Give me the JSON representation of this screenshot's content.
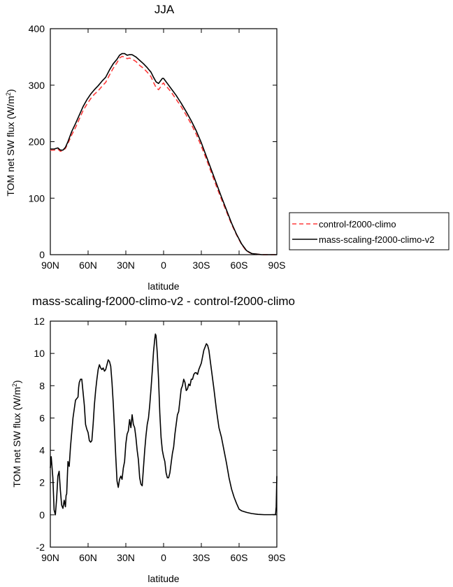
{
  "chart_data": [
    {
      "type": "line",
      "title": "JJA",
      "xlabel": "latitude",
      "ylabel_main": "TOM net SW flux (W/m",
      "ylabel_sup": "2",
      "ylabel_close": ")",
      "xlim": [
        90,
        -90
      ],
      "ylim": [
        0,
        400
      ],
      "x_tick_values": [
        90,
        60,
        30,
        0,
        -30,
        -60,
        -90
      ],
      "x_tick_labels": [
        "90N",
        "60N",
        "30N",
        "0",
        "30S",
        "60S",
        "90S"
      ],
      "y_tick_values": [
        0,
        100,
        200,
        300,
        400
      ],
      "y_tick_labels": [
        "0",
        "100",
        "200",
        "300",
        "400"
      ],
      "legend": "right",
      "series": [
        {
          "name": "control-f2000-climo",
          "color": "#ff3b3b",
          "dash": "dashed",
          "x": [
            90,
            87,
            84,
            82,
            80,
            78,
            76,
            73,
            70,
            67,
            64,
            61,
            58,
            55,
            52,
            49,
            46,
            43,
            40,
            37,
            35,
            33,
            31,
            29,
            27,
            25,
            22,
            19,
            16,
            13,
            10,
            8,
            6,
            4,
            2,
            1,
            0,
            -1,
            -3,
            -6,
            -10,
            -14,
            -18,
            -22,
            -26,
            -30,
            -34,
            -38,
            -42,
            -46,
            -50,
            -54,
            -58,
            -62,
            -66,
            -70,
            -74,
            -78,
            -82,
            -86,
            -90
          ],
          "y": [
            185,
            185,
            187,
            183,
            184,
            188,
            197,
            212,
            225,
            240,
            255,
            266,
            276,
            284,
            290,
            298,
            305,
            318,
            330,
            340,
            348,
            351,
            350,
            347,
            348,
            346,
            342,
            335,
            330,
            323,
            315,
            305,
            296,
            292,
            298,
            302,
            304,
            300,
            296,
            288,
            275,
            262,
            247,
            231,
            213,
            192,
            169,
            145,
            121,
            98,
            76,
            54,
            35,
            18,
            6,
            2,
            1,
            0,
            0,
            0,
            0
          ]
        },
        {
          "name": "mass-scaling-f2000-climo-v2",
          "color": "#000000",
          "dash": "solid",
          "x": [
            90,
            87,
            84,
            82,
            80,
            78,
            76,
            73,
            70,
            67,
            64,
            61,
            58,
            55,
            52,
            49,
            46,
            43,
            40,
            37,
            35,
            33,
            31,
            29,
            27,
            25,
            22,
            19,
            16,
            13,
            10,
            8,
            6,
            4,
            2,
            1,
            0,
            -1,
            -3,
            -6,
            -10,
            -14,
            -18,
            -22,
            -26,
            -30,
            -34,
            -38,
            -42,
            -46,
            -50,
            -54,
            -58,
            -62,
            -66,
            -70,
            -74,
            -78,
            -82,
            -86,
            -90
          ],
          "y": [
            187,
            187,
            189,
            185,
            185,
            190,
            200,
            218,
            232,
            247,
            262,
            274,
            284,
            292,
            299,
            307,
            314,
            327,
            338,
            346,
            353,
            356,
            356,
            353,
            354,
            354,
            350,
            344,
            338,
            331,
            323,
            314,
            306,
            303,
            309,
            312,
            312,
            309,
            303,
            294,
            282,
            268,
            253,
            237,
            219,
            198,
            174,
            150,
            126,
            102,
            79,
            56,
            36,
            19,
            7,
            2,
            1,
            0,
            0,
            0,
            0
          ]
        }
      ]
    },
    {
      "type": "line",
      "title": "mass-scaling-f2000-climo-v2 - control-f2000-climo",
      "xlabel": "latitude",
      "ylabel_main": "TOM net SW flux (W/m",
      "ylabel_sup": "2",
      "ylabel_close": ")",
      "xlim": [
        90,
        -90
      ],
      "ylim": [
        -2,
        12
      ],
      "x_tick_values": [
        90,
        60,
        30,
        0,
        -30,
        -60,
        -90
      ],
      "x_tick_labels": [
        "90N",
        "60N",
        "30N",
        "0",
        "30S",
        "60S",
        "90S"
      ],
      "y_tick_values": [
        -2,
        0,
        2,
        4,
        6,
        8,
        10,
        12
      ],
      "y_tick_labels": [
        "-2",
        "0",
        "2",
        "4",
        "6",
        "8",
        "10",
        "12"
      ],
      "series": [
        {
          "name": "mass-scaling-f2000-climo-v2 - control-f2000-climo",
          "color": "#000000",
          "dash": "solid",
          "x": [
            90,
            89.3,
            88,
            87,
            86,
            85,
            84,
            83,
            82,
            81,
            80,
            79,
            78,
            77.5,
            77,
            76,
            75,
            74,
            72,
            70,
            68,
            67.5,
            67,
            66,
            65,
            64,
            63,
            62,
            61,
            60,
            59,
            58,
            57,
            56,
            55,
            54,
            53,
            52,
            51,
            50,
            49,
            48,
            47,
            46,
            45,
            44,
            43,
            42,
            41,
            40,
            39,
            38,
            37,
            36,
            35,
            34,
            33,
            32,
            31,
            30,
            29,
            28,
            27,
            26,
            25,
            24,
            23,
            22,
            21,
            20,
            19,
            18,
            17,
            16,
            15,
            14,
            13,
            12,
            11,
            10,
            9,
            8,
            7,
            6.5,
            6,
            5,
            4,
            3,
            2,
            1,
            0,
            -1,
            -2,
            -3,
            -4,
            -5,
            -6,
            -7,
            -8,
            -9,
            -10,
            -11,
            -12,
            -13,
            -14,
            -15,
            -16,
            -17,
            -18,
            -19,
            -20,
            -21,
            -22,
            -23,
            -24,
            -25,
            -26,
            -27,
            -28,
            -29,
            -30,
            -31,
            -32,
            -33,
            -34,
            -35,
            -36,
            -38,
            -40,
            -42,
            -44,
            -46,
            -48,
            -50,
            -52,
            -54,
            -56,
            -58,
            -60,
            -62,
            -64,
            -66,
            -70,
            -75,
            -80,
            -85,
            -89,
            -89.5,
            -90
          ],
          "y": [
            2.9,
            3.6,
            2.3,
            0.3,
            0.0,
            1.0,
            2.4,
            2.7,
            1.5,
            0.6,
            0.4,
            0.9,
            0.5,
            1.2,
            1.3,
            3.3,
            3.0,
            4.2,
            6.0,
            7.1,
            7.3,
            7.9,
            8.2,
            8.4,
            8.4,
            7.6,
            6.8,
            5.6,
            5.3,
            5.1,
            4.6,
            4.5,
            4.6,
            5.6,
            6.8,
            7.7,
            8.4,
            9.0,
            9.3,
            9.1,
            9.0,
            9.1,
            8.9,
            9.0,
            9.3,
            9.6,
            9.5,
            9.2,
            8.2,
            6.9,
            5.3,
            3.6,
            2.1,
            1.7,
            2.2,
            2.4,
            2.2,
            2.9,
            3.3,
            4.4,
            5.0,
            5.2,
            5.9,
            5.4,
            6.2,
            5.6,
            5.4,
            4.8,
            4.0,
            3.4,
            2.3,
            1.9,
            1.8,
            2.9,
            4.0,
            4.9,
            5.6,
            6.0,
            6.8,
            7.8,
            8.9,
            10.1,
            10.9,
            11.2,
            11.1,
            10.0,
            8.4,
            6.3,
            4.8,
            4.0,
            3.6,
            3.3,
            2.6,
            2.3,
            2.3,
            2.6,
            3.2,
            3.8,
            4.2,
            5.0,
            5.6,
            6.2,
            6.4,
            7.1,
            7.8,
            8.0,
            8.4,
            8.2,
            7.7,
            7.8,
            8.1,
            8.0,
            8.4,
            8.4,
            8.7,
            8.8,
            8.8,
            8.7,
            9.0,
            9.2,
            9.4,
            9.8,
            10.2,
            10.4,
            10.6,
            10.5,
            10.2,
            9.0,
            7.8,
            6.5,
            5.4,
            4.8,
            4.0,
            3.2,
            2.3,
            1.6,
            1.1,
            0.7,
            0.35,
            0.25,
            0.2,
            0.15,
            0.08,
            0.03,
            0.01,
            0.01,
            0.02,
            0.5,
            2.4
          ]
        }
      ]
    }
  ]
}
